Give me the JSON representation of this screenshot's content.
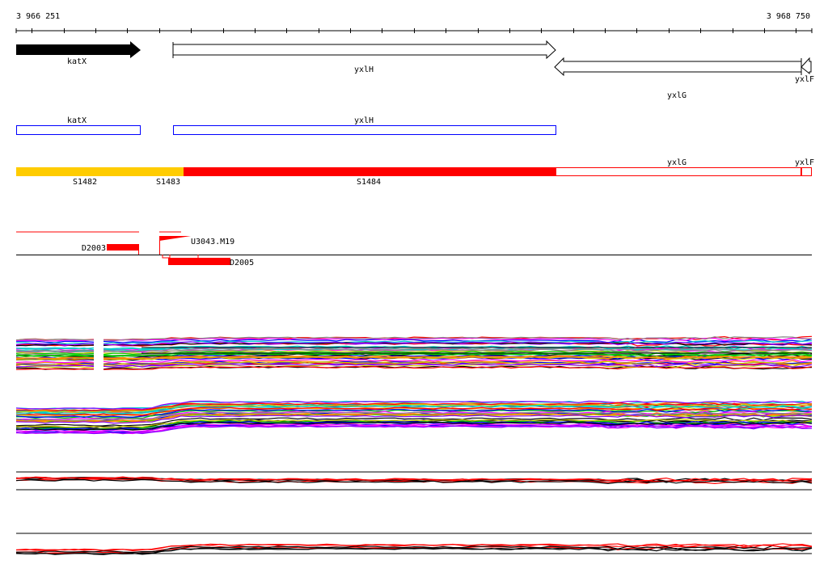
{
  "ruler": {
    "start_label": "3 966 251",
    "end_label": "3 968 750",
    "start": 3966251,
    "end": 3968750
  },
  "genes": [
    {
      "name": "katX",
      "start": 3966251,
      "end": 3966640,
      "strand": "+",
      "filled": true
    },
    {
      "name": "yxlH",
      "start": 3966745,
      "end": 3967950,
      "strand": "+",
      "filled": false
    },
    {
      "name": "yxlG",
      "start": 3967950,
      "end": 3968660,
      "strand": "-",
      "filled": false
    },
    {
      "name": "yxlF",
      "start": 3968660,
      "end": 3968750,
      "strand": "-",
      "filled": false
    }
  ],
  "cds_boxes": [
    {
      "name": "katX",
      "color": "#0000ff"
    },
    {
      "name": "yxlH",
      "color": "#0000ff"
    }
  ],
  "segments": [
    {
      "name": "S1482",
      "color": "#ffcc00"
    },
    {
      "name": "S1483",
      "color": "#ffcc00"
    },
    {
      "name": "S1484",
      "color": "#ff0000"
    },
    {
      "name": "yxlG",
      "color": "#ffffff"
    },
    {
      "name": "yxlF",
      "color": "#ffffff"
    }
  ],
  "features": [
    {
      "name": "D2003",
      "color": "#ff0000"
    },
    {
      "name": "U3043.M19",
      "color": "#ff0000"
    },
    {
      "name": "D2005",
      "color": "#ff0000"
    }
  ],
  "colors": {
    "accent": "#ff0000",
    "orange": "#ffcc00",
    "blue": "#0000ff"
  }
}
